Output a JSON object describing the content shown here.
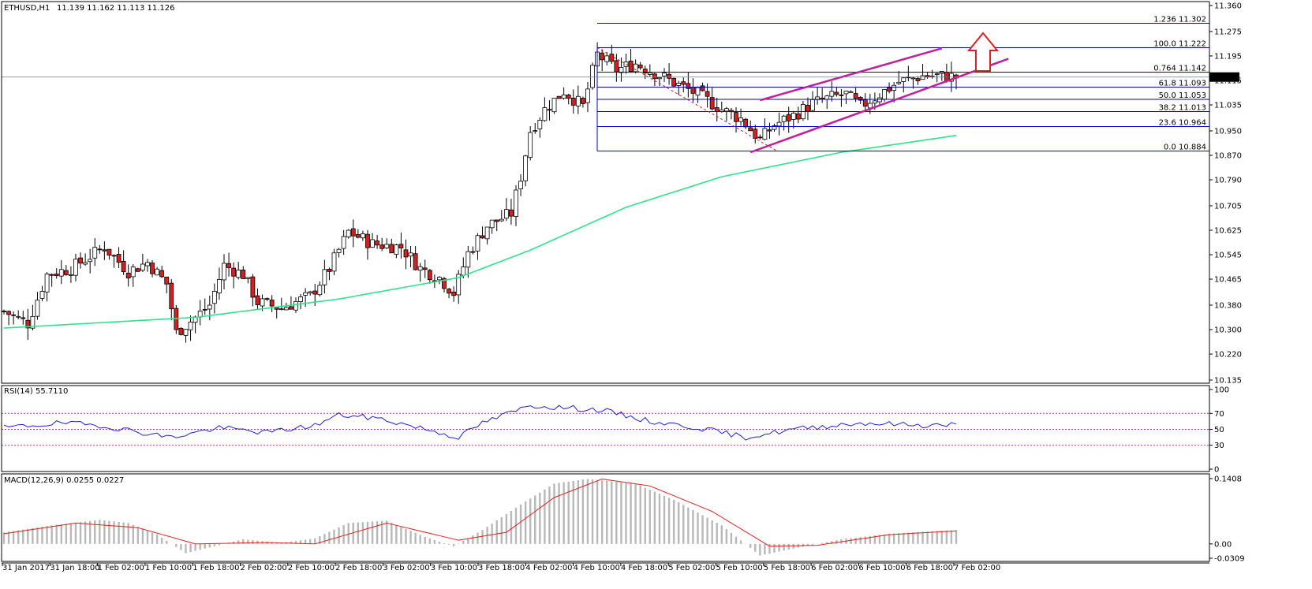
{
  "header": {
    "symbol": "ETHUSD,H1",
    "ohlc": "11.139 11.162 11.113 11.126",
    "rsi_label": "RSI(14) 55.7110",
    "macd_label": "MACD(12,26,9) 0.0255 0.0227"
  },
  "colors": {
    "bull": "#ffffff",
    "bear": "#d42020",
    "candle_outline": "#000000",
    "ma": "#2ee38a",
    "fib": "#0000c8",
    "channel": "#c0209a",
    "arrow": "#e02020",
    "rsi": "#2020d0",
    "rsi_level": "#b030b0",
    "macd_hist": "#b8b8b8",
    "macd_signal": "#e02020",
    "current_price": "#6a7a8a"
  },
  "chart_data": {
    "type": "candlestick",
    "title": "",
    "symbol": "ETHUSD",
    "timeframe": "H1",
    "price_axis": {
      "ylim": [
        10.135,
        11.36
      ],
      "ticks": [
        "11.360",
        "11.275",
        "11.195",
        "11.115",
        "11.035",
        "10.950",
        "10.870",
        "10.790",
        "10.705",
        "10.625",
        "10.545",
        "10.465",
        "10.380",
        "10.300",
        "10.220",
        "10.135"
      ]
    },
    "current_price": "11.126",
    "x_tick_labels": [
      "31 Jan 2017",
      "31 Jan 18:00",
      "1 Feb 02:00",
      "1 Feb 10:00",
      "1 Feb 18:00",
      "2 Feb 02:00",
      "2 Feb 10:00",
      "2 Feb 18:00",
      "3 Feb 02:00",
      "3 Feb 10:00",
      "3 Feb 18:00",
      "4 Feb 02:00",
      "4 Feb 10:00",
      "4 Feb 18:00",
      "5 Feb 02:00",
      "5 Feb 10:00",
      "5 Feb 18:00",
      "6 Feb 02:00",
      "6 Feb 10:00",
      "6 Feb 18:00",
      "7 Feb 02:00"
    ],
    "price_keypoints": [
      [
        0,
        10.36
      ],
      [
        5,
        10.32
      ],
      [
        9,
        10.48
      ],
      [
        14,
        10.5
      ],
      [
        19,
        10.55
      ],
      [
        21,
        10.57
      ],
      [
        26,
        10.49
      ],
      [
        30,
        10.52
      ],
      [
        34,
        10.45
      ],
      [
        36,
        10.29
      ],
      [
        40,
        10.34
      ],
      [
        43,
        10.38
      ],
      [
        46,
        10.51
      ],
      [
        50,
        10.48
      ],
      [
        53,
        10.39
      ],
      [
        58,
        10.37
      ],
      [
        64,
        10.41
      ],
      [
        68,
        10.5
      ],
      [
        72,
        10.62
      ],
      [
        77,
        10.58
      ],
      [
        83,
        10.57
      ],
      [
        87,
        10.5
      ],
      [
        91,
        10.47
      ],
      [
        94,
        10.42
      ],
      [
        97,
        10.55
      ],
      [
        101,
        10.64
      ],
      [
        106,
        10.68
      ],
      [
        108,
        10.8
      ],
      [
        110,
        10.95
      ],
      [
        113,
        11.02
      ],
      [
        117,
        11.08
      ],
      [
        121,
        11.03
      ],
      [
        124,
        11.2
      ],
      [
        128,
        11.15
      ],
      [
        132,
        11.17
      ],
      [
        136,
        11.14
      ],
      [
        141,
        11.1
      ],
      [
        145,
        11.07
      ],
      [
        150,
        11.02
      ],
      [
        154,
        10.99
      ],
      [
        158,
        10.92
      ],
      [
        161,
        10.97
      ],
      [
        165,
        11.0
      ],
      [
        169,
        11.04
      ],
      [
        173,
        11.06
      ],
      [
        176,
        11.07
      ],
      [
        179,
        11.03
      ],
      [
        183,
        11.07
      ],
      [
        187,
        11.11
      ],
      [
        192,
        11.13
      ],
      [
        196,
        11.13
      ],
      [
        199,
        11.126
      ]
    ],
    "ma_keypoints": [
      [
        0,
        10.305
      ],
      [
        40,
        10.34
      ],
      [
        70,
        10.4
      ],
      [
        95,
        10.47
      ],
      [
        110,
        10.56
      ],
      [
        130,
        10.7
      ],
      [
        150,
        10.8
      ],
      [
        175,
        10.88
      ],
      [
        199,
        10.935
      ]
    ],
    "fibonacci": [
      {
        "level": "1.236",
        "price": "11.302"
      },
      {
        "level": "100.0",
        "price": "11.222"
      },
      {
        "level": "0.764",
        "price": "11.142"
      },
      {
        "level": "61.8",
        "price": "11.093"
      },
      {
        "level": "50.0",
        "price": "11.053"
      },
      {
        "level": "38.2",
        "price": "11.013"
      },
      {
        "level": "23.6",
        "price": "10.964"
      },
      {
        "level": "0.0",
        "price": "10.884"
      }
    ],
    "channel": {
      "upper": [
        [
          158,
          11.05
        ],
        [
          196,
          11.22
        ]
      ],
      "lower": [
        [
          156,
          10.88
        ],
        [
          200,
          11.16
        ]
      ]
    },
    "rsi": {
      "ylim": [
        0,
        100
      ],
      "ticks": [
        "100",
        "70",
        "50",
        "30",
        "0"
      ],
      "levels": [
        70,
        50,
        30
      ],
      "keypoints": [
        [
          0,
          52
        ],
        [
          12,
          58
        ],
        [
          20,
          55
        ],
        [
          30,
          45
        ],
        [
          35,
          40
        ],
        [
          45,
          52
        ],
        [
          55,
          46
        ],
        [
          65,
          55
        ],
        [
          70,
          68
        ],
        [
          78,
          64
        ],
        [
          87,
          52
        ],
        [
          95,
          40
        ],
        [
          100,
          58
        ],
        [
          110,
          80
        ],
        [
          125,
          74
        ],
        [
          135,
          60
        ],
        [
          145,
          52
        ],
        [
          155,
          40
        ],
        [
          165,
          50
        ],
        [
          175,
          56
        ],
        [
          180,
          58
        ],
        [
          192,
          55
        ],
        [
          199,
          56
        ]
      ]
    },
    "macd": {
      "ylim": [
        -0.0309,
        0.1408
      ],
      "ticks": [
        "0.1408",
        "0.00",
        "-0.0309"
      ],
      "hist_keypoints": [
        [
          0,
          0.025
        ],
        [
          10,
          0.04
        ],
        [
          20,
          0.052
        ],
        [
          26,
          0.045
        ],
        [
          32,
          0.02
        ],
        [
          38,
          -0.02
        ],
        [
          44,
          -0.005
        ],
        [
          50,
          0.01
        ],
        [
          58,
          0.002
        ],
        [
          65,
          0.012
        ],
        [
          72,
          0.045
        ],
        [
          80,
          0.05
        ],
        [
          88,
          0.015
        ],
        [
          94,
          -0.005
        ],
        [
          100,
          0.03
        ],
        [
          108,
          0.085
        ],
        [
          115,
          0.13
        ],
        [
          122,
          0.14
        ],
        [
          132,
          0.13
        ],
        [
          140,
          0.095
        ],
        [
          150,
          0.04
        ],
        [
          158,
          -0.025
        ],
        [
          165,
          -0.01
        ],
        [
          175,
          0.01
        ],
        [
          185,
          0.022
        ],
        [
          199,
          0.03
        ]
      ],
      "signal_keypoints": [
        [
          0,
          0.022
        ],
        [
          15,
          0.045
        ],
        [
          28,
          0.035
        ],
        [
          40,
          0.0
        ],
        [
          55,
          0.003
        ],
        [
          65,
          0.0
        ],
        [
          80,
          0.045
        ],
        [
          95,
          0.008
        ],
        [
          105,
          0.025
        ],
        [
          115,
          0.1
        ],
        [
          125,
          0.14
        ],
        [
          135,
          0.125
        ],
        [
          148,
          0.07
        ],
        [
          160,
          -0.005
        ],
        [
          170,
          -0.003
        ],
        [
          185,
          0.02
        ],
        [
          199,
          0.028
        ]
      ]
    }
  }
}
